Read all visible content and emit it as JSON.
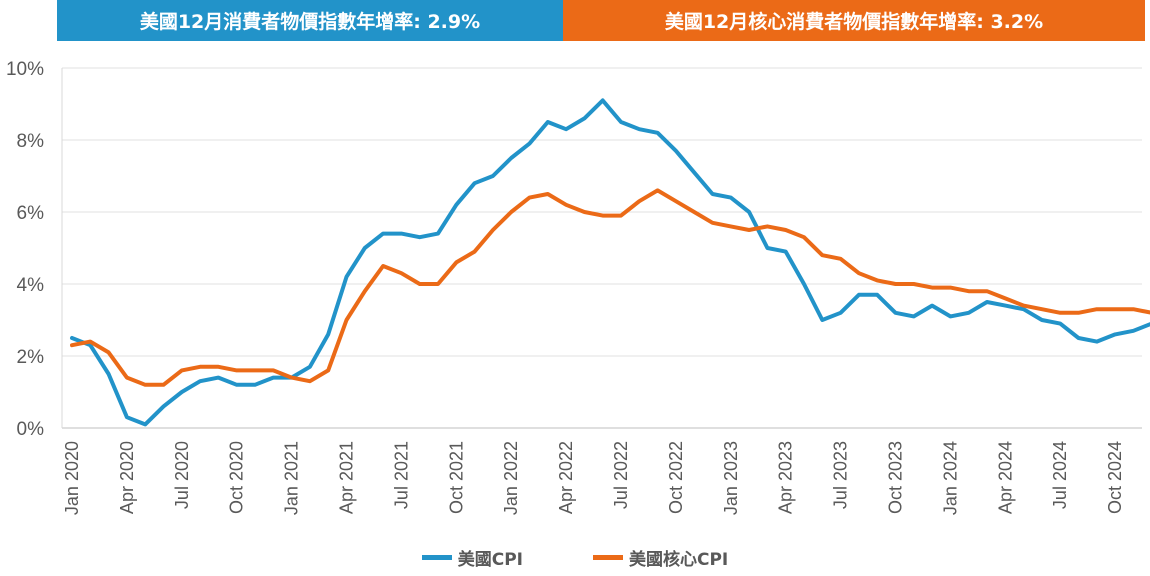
{
  "header": {
    "cpi_banner": "美國12月消費者物價指數年增率: 2.9%",
    "core_banner": "美國12月核心消費者物價指數年增率: 3.2%",
    "cpi_color": "#2293C9",
    "core_color": "#EB6A17"
  },
  "chart_data": {
    "type": "line",
    "title": "",
    "xlabel": "",
    "ylabel": "",
    "ylim": [
      0,
      10
    ],
    "yticks": [
      "0%",
      "2%",
      "4%",
      "6%",
      "8%",
      "10%"
    ],
    "xtick_labels": [
      "Jan 2020",
      "Apr 2020",
      "Jul 2020",
      "Oct 2020",
      "Jan 2021",
      "Apr 2021",
      "Jul 2021",
      "Oct 2021",
      "Jan 2022",
      "Apr 2022",
      "Jul 2022",
      "Oct 2022",
      "Jan 2023",
      "Apr 2023",
      "Jul 2023",
      "Oct 2023",
      "Jan 2024",
      "Apr 2024",
      "Jul 2024",
      "Oct 2024"
    ],
    "x_range": [
      "Jan 2020",
      "Dec 2024"
    ],
    "grid": "horizontal",
    "legend": "bottom",
    "series": [
      {
        "name": "美國CPI",
        "color": "#2293C9",
        "values": [
          2.5,
          2.3,
          1.5,
          0.3,
          0.1,
          0.6,
          1.0,
          1.3,
          1.4,
          1.2,
          1.2,
          1.4,
          1.4,
          1.7,
          2.6,
          4.2,
          5.0,
          5.4,
          5.4,
          5.3,
          5.4,
          6.2,
          6.8,
          7.0,
          7.5,
          7.9,
          8.5,
          8.3,
          8.6,
          9.1,
          8.5,
          8.3,
          8.2,
          7.7,
          7.1,
          6.5,
          6.4,
          6.0,
          5.0,
          4.9,
          4.0,
          3.0,
          3.2,
          3.7,
          3.7,
          3.2,
          3.1,
          3.4,
          3.1,
          3.2,
          3.5,
          3.4,
          3.3,
          3.0,
          2.9,
          2.5,
          2.4,
          2.6,
          2.7,
          2.9
        ]
      },
      {
        "name": "美國核心CPI",
        "color": "#EB6A17",
        "values": [
          2.3,
          2.4,
          2.1,
          1.4,
          1.2,
          1.2,
          1.6,
          1.7,
          1.7,
          1.6,
          1.6,
          1.6,
          1.4,
          1.3,
          1.6,
          3.0,
          3.8,
          4.5,
          4.3,
          4.0,
          4.0,
          4.6,
          4.9,
          5.5,
          6.0,
          6.4,
          6.5,
          6.2,
          6.0,
          5.9,
          5.9,
          6.3,
          6.6,
          6.3,
          6.0,
          5.7,
          5.6,
          5.5,
          5.6,
          5.5,
          5.3,
          4.8,
          4.7,
          4.3,
          4.1,
          4.0,
          4.0,
          3.9,
          3.9,
          3.8,
          3.8,
          3.6,
          3.4,
          3.3,
          3.2,
          3.2,
          3.3,
          3.3,
          3.3,
          3.2
        ]
      }
    ]
  }
}
